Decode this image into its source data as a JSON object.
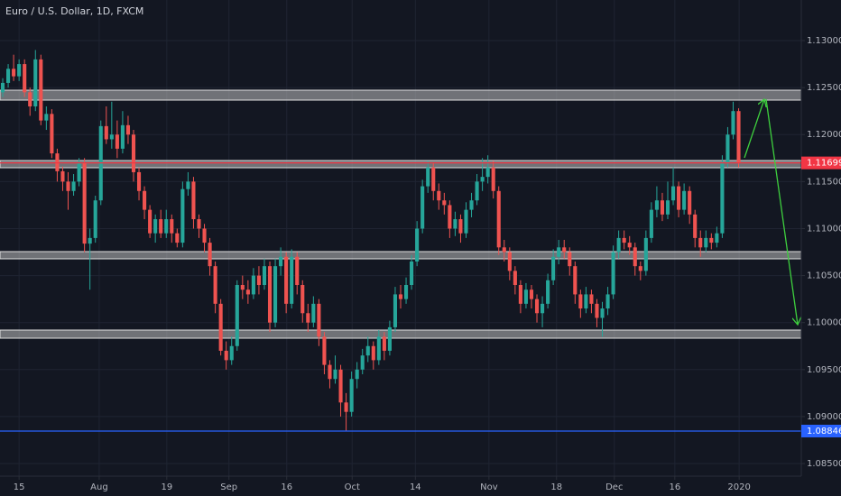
{
  "chart_data": {
    "type": "candlestick",
    "title": "Euro / U.S. Dollar, 1D, FXCM",
    "up_color": "#26a69a",
    "down_color": "#ef5350",
    "grid": true,
    "xlim": [
      -0.5,
      146.5
    ],
    "xticks": [
      {
        "value": 3,
        "label": "15"
      },
      {
        "value": 17.7,
        "label": "Aug"
      },
      {
        "value": 30.1,
        "label": "19"
      },
      {
        "value": 41.5,
        "label": "Sep"
      },
      {
        "value": 52.1,
        "label": "16"
      },
      {
        "value": 64.1,
        "label": "Oct"
      },
      {
        "value": 75.7,
        "label": "14"
      },
      {
        "value": 89.2,
        "label": "Nov"
      },
      {
        "value": 101.6,
        "label": "18"
      },
      {
        "value": 112.2,
        "label": "Dec"
      },
      {
        "value": 123.3,
        "label": "16"
      },
      {
        "value": 135.1,
        "label": "2020"
      }
    ],
    "ylim": [
      1.08366,
      1.13432
    ],
    "yticks": [
      {
        "value": 1.085,
        "label": "1.08500"
      },
      {
        "value": 1.09,
        "label": "1.09000"
      },
      {
        "value": 1.095,
        "label": "1.09500"
      },
      {
        "value": 1.1,
        "label": "1.10000"
      },
      {
        "value": 1.105,
        "label": "1.10500"
      },
      {
        "value": 1.11,
        "label": "1.11000"
      },
      {
        "value": 1.115,
        "label": "1.11500"
      },
      {
        "value": 1.12,
        "label": "1.12000"
      },
      {
        "value": 1.125,
        "label": "1.12500"
      },
      {
        "value": 1.13,
        "label": "1.13000"
      }
    ],
    "price_lines": [
      {
        "value": 1.11699,
        "color": "#f23645"
      },
      {
        "value": 1.08846,
        "color": "#2962ff"
      }
    ],
    "open": [
      1.1245,
      1.1255,
      1.127,
      1.1262,
      1.1275,
      1.1245,
      1.123,
      1.128,
      1.1215,
      1.1222,
      1.118,
      1.1161,
      1.115,
      1.114,
      1.115,
      1.117,
      1.1084,
      1.109,
      1.113,
      1.1209,
      1.1195,
      1.12,
      1.1185,
      1.121,
      1.12,
      1.116,
      1.114,
      1.112,
      1.1095,
      1.111,
      1.1095,
      1.111,
      1.1095,
      1.1085,
      1.1142,
      1.115,
      1.111,
      1.11,
      1.1085,
      1.106,
      1.102,
      1.097,
      1.096,
      1.0975,
      1.104,
      1.1035,
      1.103,
      1.105,
      1.104,
      1.106,
      1.1,
      1.106,
      1.107,
      1.102,
      1.107,
      1.104,
      1.101,
      1.1,
      1.102,
      1.0985,
      1.0955,
      1.094,
      1.095,
      1.0915,
      1.0905,
      1.094,
      1.095,
      1.0965,
      1.0975,
      1.096,
      1.0985,
      1.097,
      1.0995,
      1.103,
      1.1025,
      1.104,
      1.1065,
      1.11,
      1.1145,
      1.1165,
      1.114,
      1.113,
      1.1125,
      1.11,
      1.111,
      1.1095,
      1.112,
      1.113,
      1.115,
      1.1155,
      1.1165,
      1.114,
      1.108,
      1.1075,
      1.1055,
      1.104,
      1.102,
      1.1035,
      1.1025,
      1.101,
      1.102,
      1.1045,
      1.107,
      1.108,
      1.1075,
      1.106,
      1.103,
      1.1015,
      1.103,
      1.102,
      1.1005,
      1.1015,
      1.103,
      1.1075,
      1.109,
      1.1085,
      1.108,
      1.106,
      1.1055,
      1.109,
      1.112,
      1.113,
      1.1115,
      1.113,
      1.1145,
      1.112,
      1.114,
      1.1115,
      1.109,
      1.108,
      1.109,
      1.1085,
      1.1095,
      1.117,
      1.12,
      1.1225
    ],
    "high": [
      1.126,
      1.1275,
      1.1285,
      1.128,
      1.128,
      1.125,
      1.129,
      1.1285,
      1.123,
      1.1227,
      1.1185,
      1.1166,
      1.116,
      1.1158,
      1.1175,
      1.1175,
      1.11,
      1.1135,
      1.1215,
      1.123,
      1.1235,
      1.1215,
      1.1225,
      1.122,
      1.1205,
      1.1165,
      1.1145,
      1.1125,
      1.1115,
      1.112,
      1.112,
      1.1115,
      1.11,
      1.115,
      1.116,
      1.1155,
      1.1115,
      1.1105,
      1.109,
      1.1065,
      1.1025,
      1.098,
      1.0985,
      1.1045,
      1.105,
      1.1045,
      1.1058,
      1.106,
      1.1068,
      1.1065,
      1.1068,
      1.108,
      1.1075,
      1.1078,
      1.1075,
      1.1045,
      1.102,
      1.1028,
      1.1025,
      1.099,
      1.096,
      1.0965,
      1.0955,
      1.0925,
      1.0948,
      1.0958,
      1.0972,
      1.0985,
      1.098,
      1.0992,
      1.099,
      1.1002,
      1.1038,
      1.104,
      1.1048,
      1.1072,
      1.1108,
      1.1152,
      1.1172,
      1.117,
      1.1148,
      1.1138,
      1.113,
      1.1118,
      1.1115,
      1.1128,
      1.1138,
      1.1158,
      1.1175,
      1.1178,
      1.1172,
      1.1145,
      1.1088,
      1.108,
      1.106,
      1.1045,
      1.1042,
      1.104,
      1.103,
      1.1028,
      1.1052,
      1.1078,
      1.1088,
      1.1088,
      1.108,
      1.1065,
      1.1035,
      1.1038,
      1.1035,
      1.1025,
      1.1022,
      1.1038,
      1.1082,
      1.1098,
      1.1098,
      1.1092,
      1.1085,
      1.1065,
      1.1098,
      1.1128,
      1.1145,
      1.1138,
      1.115,
      1.1165,
      1.115,
      1.1148,
      1.1145,
      1.112,
      1.1098,
      1.1098,
      1.1095,
      1.1102,
      1.1178,
      1.1208,
      1.1235,
      1.1228
    ],
    "low": [
      1.124,
      1.125,
      1.1257,
      1.1257,
      1.124,
      1.122,
      1.1225,
      1.121,
      1.1205,
      1.1175,
      1.115,
      1.114,
      1.112,
      1.1135,
      1.1145,
      1.1075,
      1.1035,
      1.1085,
      1.1125,
      1.119,
      1.1185,
      1.1175,
      1.118,
      1.119,
      1.115,
      1.113,
      1.111,
      1.109,
      1.1085,
      1.109,
      1.109,
      1.1085,
      1.108,
      1.108,
      1.1135,
      1.11,
      1.109,
      1.1075,
      1.105,
      1.101,
      1.0965,
      1.095,
      1.0955,
      1.097,
      1.1025,
      1.102,
      1.1025,
      1.103,
      1.1035,
      1.099,
      1.0995,
      1.105,
      1.101,
      1.1015,
      1.103,
      1.1,
      1.099,
      1.0995,
      1.0975,
      1.0945,
      1.093,
      1.0935,
      1.09,
      1.0885,
      1.09,
      1.093,
      1.0945,
      1.0958,
      1.095,
      1.0955,
      1.096,
      1.0965,
      1.099,
      1.1015,
      1.102,
      1.1035,
      1.106,
      1.1095,
      1.1138,
      1.113,
      1.112,
      1.1115,
      1.109,
      1.1092,
      1.1085,
      1.109,
      1.1112,
      1.1125,
      1.114,
      1.1148,
      1.1132,
      1.1072,
      1.1065,
      1.1045,
      1.103,
      1.101,
      1.1015,
      1.1015,
      1.1,
      1.0995,
      1.1015,
      1.104,
      1.1062,
      1.1068,
      1.105,
      1.102,
      1.1005,
      1.101,
      1.101,
      1.0995,
      1.0985,
      1.1008,
      1.1025,
      1.1068,
      1.1078,
      1.1072,
      1.105,
      1.1045,
      1.105,
      1.1085,
      1.1112,
      1.1108,
      1.111,
      1.1125,
      1.1112,
      1.1115,
      1.1105,
      1.108,
      1.107,
      1.1075,
      1.1078,
      1.108,
      1.109,
      1.1165,
      1.1195,
      1.1165
    ],
    "close": [
      1.1255,
      1.127,
      1.1262,
      1.1275,
      1.1245,
      1.123,
      1.128,
      1.1215,
      1.1222,
      1.118,
      1.1161,
      1.115,
      1.114,
      1.115,
      1.117,
      1.1084,
      1.109,
      1.113,
      1.1209,
      1.1195,
      1.12,
      1.1185,
      1.121,
      1.12,
      1.116,
      1.114,
      1.112,
      1.1095,
      1.111,
      1.1095,
      1.111,
      1.1095,
      1.1085,
      1.1142,
      1.115,
      1.111,
      1.11,
      1.1085,
      1.106,
      1.102,
      1.097,
      1.096,
      1.0975,
      1.104,
      1.1035,
      1.103,
      1.105,
      1.104,
      1.106,
      1.1,
      1.106,
      1.107,
      1.102,
      1.107,
      1.104,
      1.101,
      1.1,
      1.102,
      1.0985,
      1.0955,
      1.094,
      1.095,
      1.0915,
      1.0905,
      1.094,
      1.095,
      1.0965,
      1.0975,
      1.096,
      1.0985,
      1.097,
      1.0995,
      1.103,
      1.1025,
      1.104,
      1.1065,
      1.11,
      1.1145,
      1.1165,
      1.114,
      1.113,
      1.1125,
      1.11,
      1.111,
      1.1095,
      1.112,
      1.113,
      1.115,
      1.1155,
      1.1165,
      1.114,
      1.108,
      1.1075,
      1.1055,
      1.104,
      1.102,
      1.1035,
      1.1025,
      1.101,
      1.102,
      1.1045,
      1.107,
      1.108,
      1.1075,
      1.106,
      1.103,
      1.1015,
      1.103,
      1.102,
      1.1005,
      1.1015,
      1.103,
      1.1075,
      1.109,
      1.1085,
      1.108,
      1.106,
      1.1055,
      1.109,
      1.112,
      1.113,
      1.1115,
      1.113,
      1.1145,
      1.112,
      1.114,
      1.1115,
      1.109,
      1.108,
      1.109,
      1.1085,
      1.1095,
      1.117,
      1.12,
      1.1225,
      1.117
    ]
  }
}
